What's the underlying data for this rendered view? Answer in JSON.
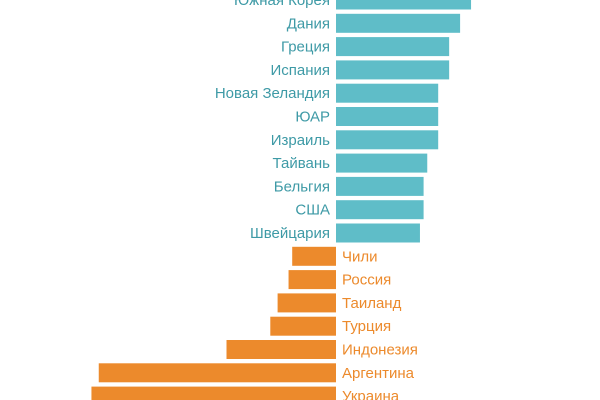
{
  "chart_data": {
    "type": "bar",
    "orientation": "horizontal-diverging",
    "title": "",
    "xlabel": "",
    "ylabel": "",
    "xlim": [
      -10.5,
      6
    ],
    "categories": [
      "Южная Корея",
      "Дания",
      "Греция",
      "Испания",
      "Новая Зеландия",
      "ЮАР",
      "Израиль",
      "Тайвань",
      "Бельгия",
      "США",
      "Швейцария",
      "Чили",
      "Россия",
      "Таиланд",
      "Турция",
      "Индонезия",
      "Аргентина",
      "Украина"
    ],
    "values": [
      3.7,
      3.4,
      3.1,
      3.1,
      2.8,
      2.8,
      2.8,
      2.5,
      2.4,
      2.4,
      2.3,
      -1.2,
      -1.3,
      -1.6,
      -1.8,
      -3.0,
      -6.5,
      -6.7
    ],
    "colors": {
      "positive": "#5fbdc8",
      "negative": "#ec8a2c",
      "positive_label": "#3e9aa6",
      "negative_label": "#ec8a2c"
    },
    "grid": false,
    "legend": "none"
  }
}
